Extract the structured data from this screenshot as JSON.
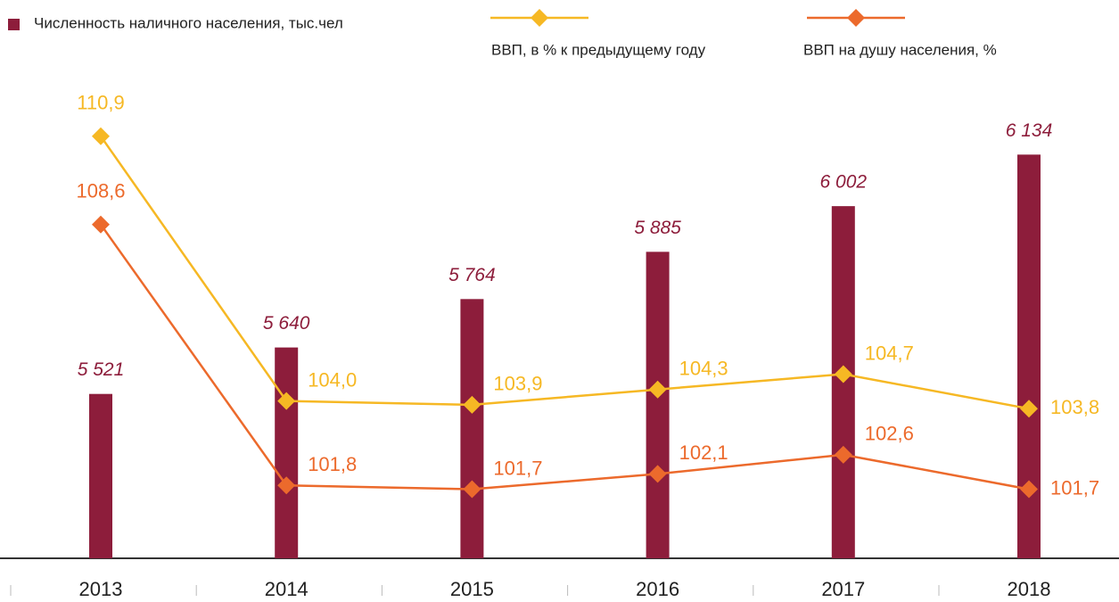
{
  "chart_data": {
    "type": "bar",
    "categories": [
      "2013",
      "2014",
      "2015",
      "2016",
      "2017",
      "2018"
    ],
    "series": [
      {
        "name": "Численность наличного населения, тыс.чел",
        "type": "bar",
        "color": "#8d1d3b",
        "values": [
          5521,
          5640,
          5764,
          5885,
          6002,
          6134
        ],
        "value_labels": [
          "5 521",
          "5 640",
          "5 764",
          "5 885",
          "6 002",
          "6 134"
        ]
      },
      {
        "name": "ВВП, в % к предыдущему году",
        "type": "line",
        "axis": "y2",
        "color": "#f6b824",
        "values": [
          110.9,
          104.0,
          103.9,
          104.3,
          104.7,
          103.8
        ],
        "value_labels": [
          "110,9",
          "104,0",
          "103,9",
          "104,3",
          "104,7",
          "103,8"
        ]
      },
      {
        "name": "ВВП на душу населения, %",
        "type": "line",
        "axis": "y2",
        "color": "#ec6a2c",
        "values": [
          108.6,
          101.8,
          101.7,
          102.1,
          102.6,
          101.7
        ],
        "value_labels": [
          "108,6",
          "101,8",
          "101,7",
          "102,1",
          "102,6",
          "101,7"
        ]
      }
    ],
    "ylim": [
      5100,
      6530
    ],
    "y2lim": [
      99.9,
      114.45
    ]
  }
}
